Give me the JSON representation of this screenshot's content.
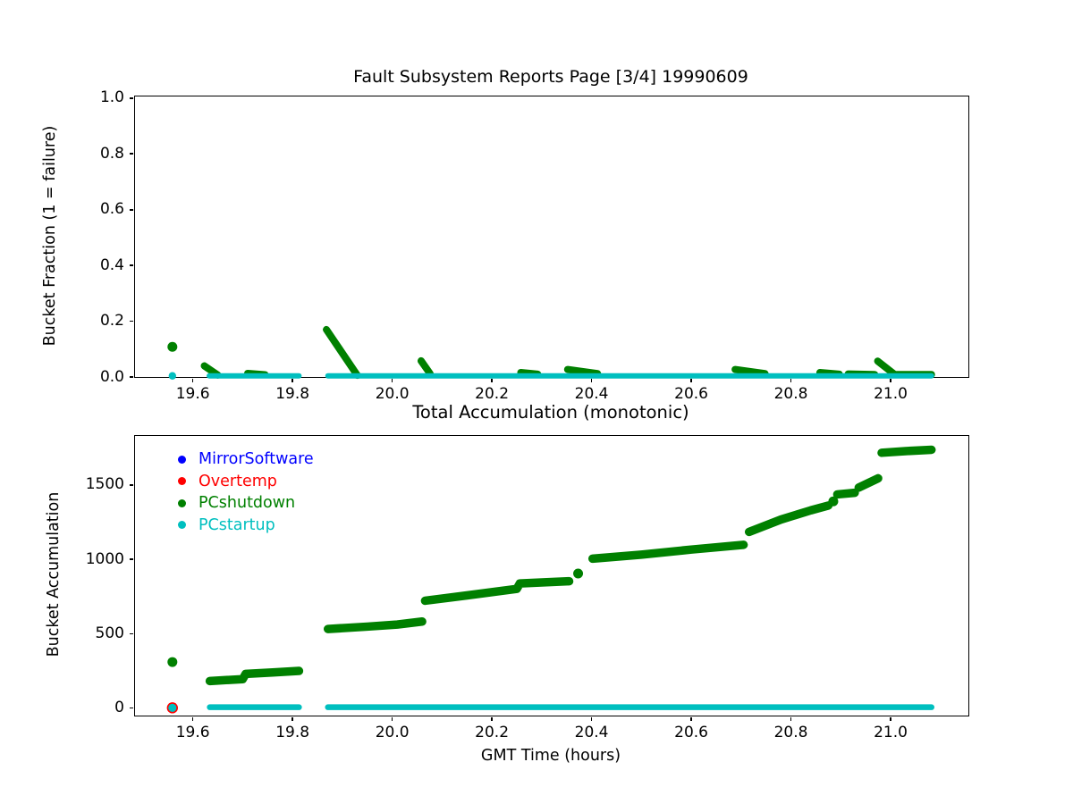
{
  "figure": {
    "background": "#ffffff",
    "spine_color": "#000000"
  },
  "legend": {
    "position": "upper-left-of-bottom-plot",
    "frame": false,
    "items": [
      {
        "label": "MirrorSoftware",
        "color": "#0000ff"
      },
      {
        "label": "Overtemp",
        "color": "#ff0000"
      },
      {
        "label": "PCshutdown",
        "color": "#008000"
      },
      {
        "label": "PCstartup",
        "color": "#00bfbf"
      }
    ]
  },
  "chart_data": [
    {
      "type": "scatter",
      "title": "Fault Subsystem Reports Page [3/4] 19990609",
      "xlabel": "",
      "ylabel": "Bucket Fraction (1 = failure)",
      "grid": false,
      "xlim": [
        19.484,
        21.156
      ],
      "ylim": [
        0,
        1.006
      ],
      "xticks": [
        19.6,
        19.8,
        20.0,
        20.2,
        20.4,
        20.6,
        20.8,
        21.0
      ],
      "xtick_labels": [
        "19.6",
        "19.8",
        "20.0",
        "20.2",
        "20.4",
        "20.6",
        "20.8",
        "21.0"
      ],
      "yticks": [
        0.0,
        0.2,
        0.4,
        0.6,
        0.8,
        1.0
      ],
      "ytick_labels": [
        "0.0",
        "0.2",
        "0.4",
        "0.6",
        "0.8",
        "1.0"
      ],
      "series": [
        {
          "name": "PCshutdown",
          "color": "#008000",
          "stroke": 8,
          "dot_r": 5.5,
          "runs": [
            [
              [
                19.623,
                0.04
              ],
              [
                19.65,
                0.007
              ]
            ],
            [
              [
                19.71,
                0.013
              ],
              [
                19.745,
                0.008
              ]
            ],
            [
              [
                19.868,
                0.17
              ],
              [
                19.93,
                0.006
              ]
            ],
            [
              [
                20.058,
                0.058
              ],
              [
                20.076,
                0.012
              ]
            ],
            [
              [
                20.258,
                0.016
              ],
              [
                20.292,
                0.01
              ]
            ],
            [
              [
                20.352,
                0.027
              ],
              [
                20.412,
                0.012
              ]
            ],
            [
              [
                20.688,
                0.027
              ],
              [
                20.748,
                0.012
              ]
            ],
            [
              [
                20.858,
                0.016
              ],
              [
                20.897,
                0.01
              ]
            ],
            [
              [
                20.915,
                0.011
              ],
              [
                20.968,
                0.009
              ]
            ],
            [
              [
                20.974,
                0.057
              ],
              [
                21.006,
                0.012
              ]
            ],
            [
              [
                21.012,
                0.009
              ],
              [
                21.082,
                0.009
              ]
            ]
          ],
          "points": [
            [
              19.559,
              0.108
            ]
          ]
        },
        {
          "name": "PCstartup",
          "color": "#00bfbf",
          "stroke": 6,
          "dot_r": 4.2,
          "runs": [
            [
              [
                19.633,
                0.004
              ],
              [
                19.813,
                0.004
              ]
            ],
            [
              [
                19.871,
                0.004
              ],
              [
                21.082,
                0.004
              ]
            ]
          ],
          "points": [
            [
              19.559,
              0.004
            ]
          ]
        }
      ]
    },
    {
      "type": "scatter",
      "title": "Total Accumulation (monotonic)",
      "xlabel": "GMT Time (hours)",
      "ylabel": "Bucket Accumulation",
      "grid": false,
      "xlim": [
        19.484,
        21.156
      ],
      "ylim": [
        -50,
        1830
      ],
      "xticks": [
        19.6,
        19.8,
        20.0,
        20.2,
        20.4,
        20.6,
        20.8,
        21.0
      ],
      "xtick_labels": [
        "19.6",
        "19.8",
        "20.0",
        "20.2",
        "20.4",
        "20.6",
        "20.8",
        "21.0"
      ],
      "yticks": [
        0,
        500,
        1000,
        1500
      ],
      "ytick_labels": [
        "0",
        "500",
        "1000",
        "1500"
      ],
      "series": [
        {
          "name": "MirrorSoftware",
          "color": "#0000ff",
          "stroke": 9,
          "dot_r": 5.0,
          "runs": [],
          "points": [
            [
              19.559,
              2
            ]
          ]
        },
        {
          "name": "Overtemp",
          "color": "#ff0000",
          "stroke": 9,
          "dot_r": 6.2,
          "runs": [],
          "points": [
            [
              19.559,
              2
            ]
          ]
        },
        {
          "name": "PCshutdown",
          "color": "#008000",
          "stroke": 9.5,
          "dot_r": 5.5,
          "runs": [
            [
              [
                19.634,
                182
              ],
              [
                19.7,
                195
              ],
              [
                19.706,
                230
              ],
              [
                19.76,
                240
              ],
              [
                19.813,
                250
              ]
            ],
            [
              [
                19.871,
                532
              ],
              [
                19.95,
                548
              ],
              [
                20.01,
                562
              ],
              [
                20.06,
                582
              ]
            ],
            [
              [
                20.066,
                722
              ],
              [
                20.15,
                758
              ],
              [
                20.25,
                802
              ],
              [
                20.256,
                838
              ],
              [
                20.3,
                845
              ],
              [
                20.355,
                853
              ]
            ],
            [
              [
                20.402,
                1005
              ],
              [
                20.5,
                1032
              ],
              [
                20.6,
                1066
              ],
              [
                20.705,
                1098
              ]
            ],
            [
              [
                20.716,
                1185
              ],
              [
                20.78,
                1268
              ],
              [
                20.84,
                1330
              ],
              [
                20.875,
                1362
              ]
            ],
            [
              [
                20.893,
                1437
              ],
              [
                20.928,
                1448
              ]
            ],
            [
              [
                20.936,
                1483
              ],
              [
                20.975,
                1545
              ]
            ],
            [
              [
                20.982,
                1717
              ],
              [
                21.03,
                1728
              ],
              [
                21.082,
                1737
              ]
            ]
          ],
          "points": [
            [
              19.559,
              310
            ],
            [
              20.373,
              905
            ],
            [
              20.885,
              1390
            ]
          ]
        },
        {
          "name": "PCstartup",
          "color": "#00bfbf",
          "stroke": 6.5,
          "dot_r": 4.6,
          "runs": [
            [
              [
                19.634,
                6
              ],
              [
                19.813,
                6
              ]
            ],
            [
              [
                19.871,
                6
              ],
              [
                21.082,
                6
              ]
            ]
          ],
          "points": [
            [
              19.559,
              2
            ]
          ]
        }
      ]
    }
  ]
}
